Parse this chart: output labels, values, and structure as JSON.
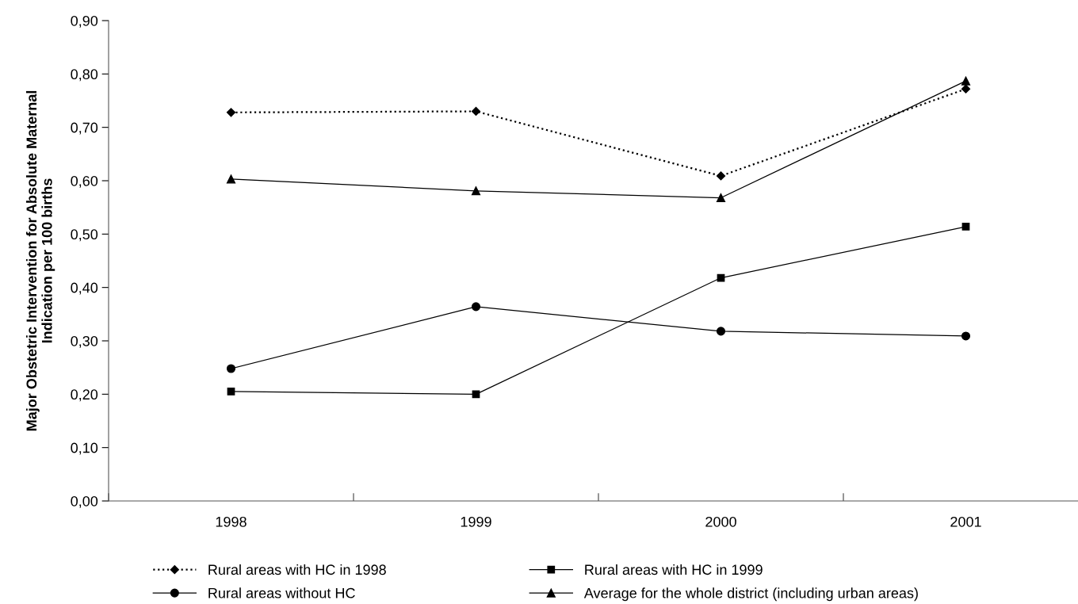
{
  "chart_data": {
    "type": "line",
    "ylabel": "Major Obstetric Intervention for Absolute Maternal\nIndication per 100 births",
    "categories": [
      "1998",
      "1999",
      "2000",
      "2001"
    ],
    "ylim": [
      0,
      0.9
    ],
    "yticks": [
      {
        "value": 0,
        "label": "0,00"
      },
      {
        "value": 0.1,
        "label": "0,10"
      },
      {
        "value": 0.2,
        "label": "0,20"
      },
      {
        "value": 0.3,
        "label": "0,30"
      },
      {
        "value": 0.4,
        "label": "0,40"
      },
      {
        "value": 0.5,
        "label": "0,50"
      },
      {
        "value": 0.6,
        "label": "0,60"
      },
      {
        "value": 0.7,
        "label": "0,70"
      },
      {
        "value": 0.8,
        "label": "0,80"
      },
      {
        "value": 0.9,
        "label": "0,90"
      }
    ],
    "grid": false,
    "legend": "bottom",
    "series": [
      {
        "name": "Rural areas with HC in 1998",
        "color": "#000000",
        "marker": "diamond",
        "line_style": "dotted",
        "values": [
          0.728,
          0.73,
          0.609,
          0.772
        ]
      },
      {
        "name": "Rural areas with HC in 1999",
        "color": "#000000",
        "marker": "square",
        "line_style": "solid",
        "values": [
          0.205,
          0.2,
          0.418,
          0.514
        ]
      },
      {
        "name": "Rural areas without HC",
        "color": "#000000",
        "marker": "circle",
        "line_style": "solid",
        "values": [
          0.248,
          0.364,
          0.318,
          0.309
        ]
      },
      {
        "name": "Average for the whole district (including urban areas)",
        "color": "#000000",
        "marker": "triangle",
        "line_style": "solid",
        "values": [
          0.603,
          0.581,
          0.568,
          0.787
        ]
      }
    ]
  }
}
